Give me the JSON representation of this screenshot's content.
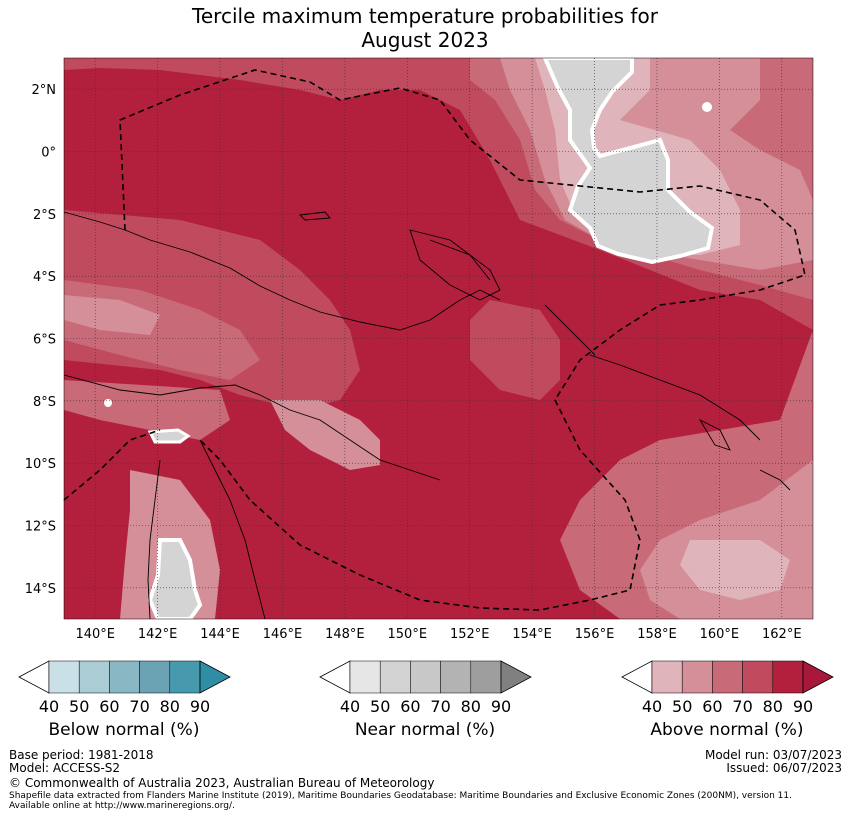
{
  "title": {
    "line1": "Tercile maximum temperature probabilities for",
    "line2": "August 2023"
  },
  "map": {
    "lon_range": [
      139,
      163
    ],
    "lat_range": [
      -15,
      3
    ],
    "lat_labels": [
      "2°N",
      "0°",
      "2°S",
      "4°S",
      "6°S",
      "8°S",
      "10°S",
      "12°S",
      "14°S"
    ],
    "lat_values": [
      2,
      0,
      -2,
      -4,
      -6,
      -8,
      -10,
      -12,
      -14
    ],
    "lon_labels": [
      "140°E",
      "142°E",
      "144°E",
      "146°E",
      "148°E",
      "150°E",
      "152°E",
      "154°E",
      "156°E",
      "158°E",
      "160°E",
      "162°E"
    ],
    "lon_values": [
      140,
      142,
      144,
      146,
      148,
      150,
      152,
      154,
      156,
      158,
      160,
      162
    ]
  },
  "colors": {
    "above": [
      "#e0b4bb",
      "#d48f99",
      "#c96a78",
      "#c04a5e",
      "#b3203e",
      "#a8183a"
    ],
    "below": [
      "#c8e0e6",
      "#a9ccd5",
      "#8ab7c4",
      "#6ba3b4",
      "#479aad",
      "#2f8ea3"
    ],
    "near": [
      "#e6e6e6",
      "#d3d3d3",
      "#c8c8c8",
      "#b3b3b3",
      "#9e9e9e",
      "#808080"
    ],
    "near_region": "#d4d4d4"
  },
  "colorbars": [
    {
      "name": "below",
      "label": "Below normal (%)",
      "ticks": [
        "40",
        "50",
        "60",
        "70",
        "80",
        "90"
      ]
    },
    {
      "name": "near",
      "label": "Near normal (%)",
      "ticks": [
        "40",
        "50",
        "60",
        "70",
        "80",
        "90"
      ]
    },
    {
      "name": "above",
      "label": "Above normal (%)",
      "ticks": [
        "40",
        "50",
        "60",
        "70",
        "80",
        "90"
      ]
    }
  ],
  "footer": {
    "base_period": "Base period: 1981-2018",
    "model": "Model: ACCESS-S2",
    "model_run": "Model run: 03/07/2023",
    "issued": "Issued: 06/07/2023",
    "copyright": "© Commonwealth of Australia 2023, Australian Bureau of Meteorology",
    "shapefile_line1": "Shapefile data extracted from Flanders Marine Institute (2019), Maritime Boundaries Geodatabase: Maritime Boundaries and Exclusive Economic Zones (200NM), version 11.",
    "shapefile_line2": "Available online at http://www.marineregions.org/."
  }
}
